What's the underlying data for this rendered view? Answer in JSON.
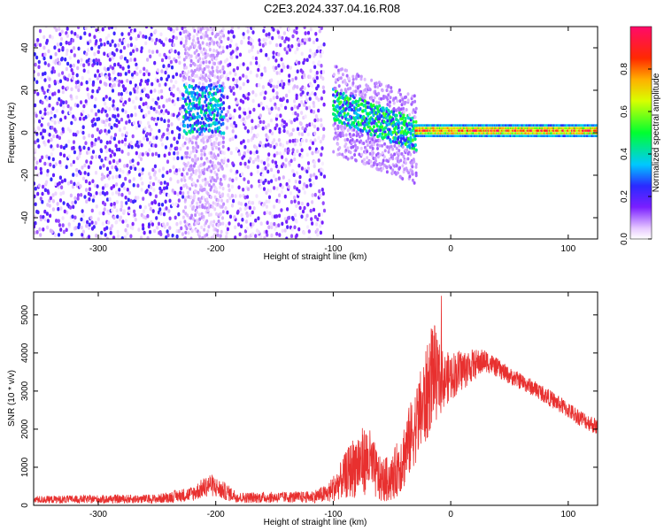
{
  "title": "C2E3.2024.337.04.16.R08",
  "chart_data": [
    {
      "type": "heatmap",
      "xlabel": "Height of straight line (km)",
      "ylabel": "Frequency (Hz)",
      "xlim": [
        -355,
        125
      ],
      "ylim": [
        -50,
        50
      ],
      "xticks": [
        "-300",
        "-200",
        "-100",
        "0",
        "100"
      ],
      "yticks": [
        "-40",
        "-20",
        "0",
        "20",
        "40"
      ],
      "colorbar": {
        "label": "Normalized spectral amplitude",
        "range": [
          0,
          1
        ],
        "ticks": [
          "0.0",
          "0.2",
          "0.4",
          "0.6",
          "0.8"
        ]
      },
      "regions": [
        {
          "x_from": -355,
          "x_to": -228,
          "frequency_extent": "full band",
          "amplitude": 0.15
        },
        {
          "x_from": -228,
          "x_to": -193,
          "frequency_center": 10,
          "amplitude": 0.3
        },
        {
          "x_from": -193,
          "x_to": -108,
          "frequency_extent": "full band",
          "amplitude": 0.12
        },
        {
          "x_from": -100,
          "x_to": -30,
          "frequency_center_from": 12,
          "frequency_center_to": -2,
          "amplitude": 0.4
        },
        {
          "x_from": -30,
          "x_to": 125,
          "frequency_center": 1,
          "amplitude": 0.85
        }
      ]
    },
    {
      "type": "line",
      "xlabel": "Height of straight line (km)",
      "ylabel": "SNR (10 * v/v)",
      "xlim": [
        -355,
        125
      ],
      "ylim": [
        0,
        5600
      ],
      "xticks": [
        "-300",
        "-200",
        "-100",
        "0",
        "100"
      ],
      "yticks": [
        "0",
        "1000",
        "2000",
        "3000",
        "4000",
        "5000"
      ],
      "color": "#e8302f",
      "series": [
        {
          "x": [
            -355,
            -300,
            -250,
            -220,
            -205,
            -195,
            -180,
            -120,
            -105,
            -95,
            -80,
            -70,
            -60,
            -50,
            -40,
            -30,
            -20,
            -15,
            -12,
            -5,
            0,
            10,
            20,
            30,
            40,
            50,
            60,
            75,
            90,
            100,
            110,
            125
          ],
          "y": [
            150,
            160,
            170,
            300,
            550,
            400,
            200,
            220,
            300,
            600,
            1100,
            1200,
            650,
            700,
            1300,
            2100,
            2900,
            3700,
            3300,
            3300,
            3400,
            3550,
            3700,
            3800,
            3600,
            3400,
            3250,
            3000,
            2700,
            2500,
            2300,
            2050
          ],
          "noise": [
            100,
            110,
            120,
            200,
            300,
            250,
            140,
            150,
            250,
            450,
            900,
            900,
            600,
            600,
            900,
            1000,
            1300,
            1400,
            1100,
            700,
            650,
            550,
            400,
            300,
            250,
            220,
            220,
            220,
            220,
            220,
            220,
            220
          ]
        }
      ]
    }
  ]
}
